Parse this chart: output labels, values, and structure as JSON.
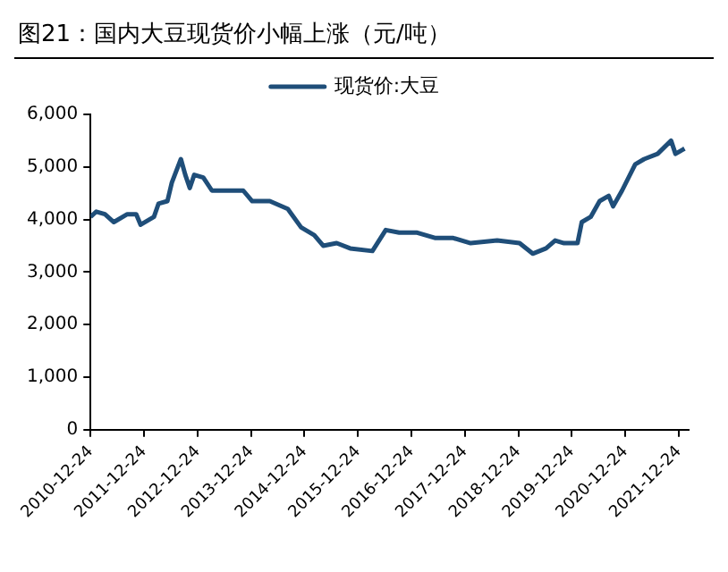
{
  "chart_data": {
    "type": "line",
    "title": "图21：国内大豆现货价小幅上涨（元/吨）",
    "x": [
      "2010-12-24",
      "2011-02",
      "2011-04",
      "2011-06",
      "2011-09",
      "2011-11",
      "2011-12",
      "2012-03",
      "2012-04",
      "2012-06",
      "2012-07",
      "2012-09",
      "2012-10",
      "2012-11",
      "2012-12",
      "2013-02",
      "2013-04",
      "2013-08",
      "2013-11",
      "2014-01",
      "2014-05",
      "2014-09",
      "2014-12",
      "2015-03",
      "2015-05",
      "2015-08",
      "2015-11",
      "2016-04",
      "2016-07",
      "2016-10",
      "2017-02",
      "2017-06",
      "2017-10",
      "2018-02",
      "2018-08",
      "2019-01",
      "2019-04",
      "2019-07",
      "2019-09",
      "2019-11",
      "2020-02",
      "2020-03",
      "2020-05",
      "2020-07",
      "2020-09",
      "2020-10",
      "2020-12",
      "2021-03",
      "2021-05",
      "2021-08",
      "2021-11",
      "2021-12",
      "2022-02"
    ],
    "series": [
      {
        "name": "现货价:大豆",
        "color": "#1f4e79",
        "values": [
          4050,
          4150,
          4100,
          3950,
          4100,
          4100,
          3900,
          4050,
          4300,
          4350,
          4700,
          5150,
          4850,
          4600,
          4850,
          4800,
          4550,
          4550,
          4550,
          4350,
          4350,
          4200,
          3850,
          3700,
          3500,
          3550,
          3450,
          3400,
          3800,
          3750,
          3750,
          3650,
          3650,
          3550,
          3600,
          3550,
          3350,
          3450,
          3600,
          3550,
          3550,
          3950,
          4050,
          4350,
          4450,
          4250,
          4550,
          5050,
          5150,
          5250,
          5500,
          5250,
          5350
        ]
      }
    ],
    "xlim": [
      "2010-12-24",
      "2022-03-01"
    ],
    "xticks": [
      "2010-12-24",
      "2011-12-24",
      "2012-12-24",
      "2013-12-24",
      "2014-12-24",
      "2015-12-24",
      "2016-12-24",
      "2017-12-24",
      "2018-12-24",
      "2019-12-24",
      "2020-12-24",
      "2021-12-24"
    ],
    "ylim": [
      0,
      6000
    ],
    "yticks": [
      {
        "value": 0,
        "label": "0"
      },
      {
        "value": 1000,
        "label": "1,000"
      },
      {
        "value": 2000,
        "label": "2,000"
      },
      {
        "value": 3000,
        "label": "3,000"
      },
      {
        "value": 4000,
        "label": "4,000"
      },
      {
        "value": 5000,
        "label": "5,000"
      },
      {
        "value": 6000,
        "label": "6,000"
      }
    ],
    "grid": false,
    "legend": "top",
    "marker": "none",
    "line_style": "solid"
  }
}
